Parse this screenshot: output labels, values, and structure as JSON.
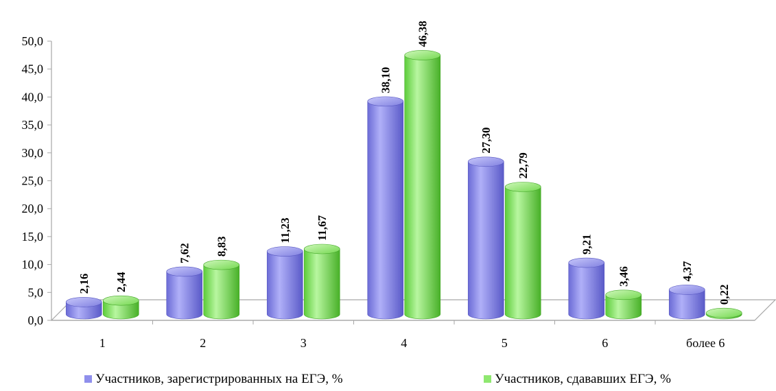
{
  "chart_data": {
    "type": "bar",
    "title": "",
    "xlabel": "",
    "ylabel": "",
    "categories": [
      "1",
      "2",
      "3",
      "4",
      "5",
      "6",
      "более 6"
    ],
    "series": [
      {
        "name": "Участников, зарегистрированных на ЕГЭ, %",
        "values": [
          2.16,
          7.62,
          11.23,
          38.1,
          27.3,
          9.21,
          4.37
        ],
        "labels": [
          "2,16",
          "7,62",
          "11,23",
          "38,10",
          "27,30",
          "9,21",
          "4,37"
        ],
        "color": "#8f8fec"
      },
      {
        "name": "Участников, сдававших ЕГЭ, %",
        "values": [
          2.44,
          8.83,
          11.67,
          46.38,
          22.79,
          3.46,
          0.22
        ],
        "labels": [
          "2,44",
          "8,83",
          "11,67",
          "46,38",
          "22,79",
          "3,46",
          "0,22"
        ],
        "color": "#8fe870"
      }
    ],
    "ylim": [
      0,
      50
    ],
    "yticks": [
      "0,0",
      "5,0",
      "10,0",
      "15,0",
      "20,0",
      "25,0",
      "30,0",
      "35,0",
      "40,0",
      "45,0",
      "50,0"
    ],
    "legend_position": "bottom",
    "grid": false,
    "style": "3d-cylinder"
  }
}
